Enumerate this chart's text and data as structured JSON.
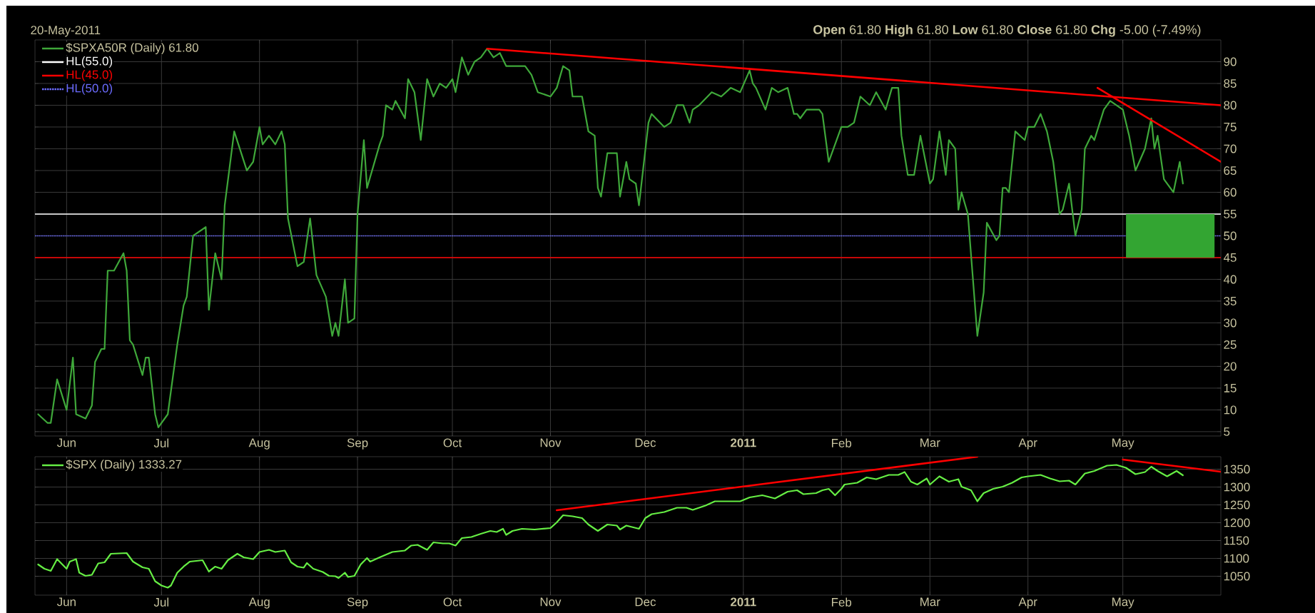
{
  "chart_data": [
    {
      "type": "line",
      "annotations": [
        "20-May-2011",
        "**Open** 61.80 **High** 61.80 **Low** 61.80 **Close** 61.80 **Chg** -5.00 (-7.49%)"
      ],
      "x": [
        "2010-05-23",
        "2010-05-26",
        "2010-05-27",
        "2010-05-29",
        "2010-06-01",
        "2010-06-03",
        "2010-06-04",
        "2010-06-07",
        "2010-06-09",
        "2010-06-10",
        "2010-06-12",
        "2010-06-13",
        "2010-06-14",
        "2010-06-16",
        "2010-06-19",
        "2010-06-20",
        "2010-06-21",
        "2010-06-22",
        "2010-06-25",
        "2010-06-26",
        "2010-06-27",
        "2010-06-29",
        "2010-06-30",
        "2010-07-03",
        "2010-07-06",
        "2010-07-08",
        "2010-07-09",
        "2010-07-11",
        "2010-07-15",
        "2010-07-16",
        "2010-07-18",
        "2010-07-20",
        "2010-07-21",
        "2010-07-24",
        "2010-07-28",
        "2010-07-30",
        "2010-08-01",
        "2010-08-02",
        "2010-08-04",
        "2010-08-06",
        "2010-08-08",
        "2010-08-09",
        "2010-08-10",
        "2010-08-13",
        "2010-08-15",
        "2010-08-17",
        "2010-08-19",
        "2010-08-22",
        "2010-08-24",
        "2010-08-25",
        "2010-08-26",
        "2010-08-28",
        "2010-08-29",
        "2010-08-31",
        "2010-09-01",
        "2010-09-03",
        "2010-09-04",
        "2010-09-08",
        "2010-09-09",
        "2010-09-10",
        "2010-09-12",
        "2010-09-13",
        "2010-09-16",
        "2010-09-17",
        "2010-09-19",
        "2010-09-21",
        "2010-09-23",
        "2010-09-25",
        "2010-09-27",
        "2010-09-29",
        "2010-10-01",
        "2010-10-02",
        "2010-10-04",
        "2010-10-06",
        "2010-10-08",
        "2010-10-10",
        "2010-10-12",
        "2010-10-14",
        "2010-10-16",
        "2010-10-18",
        "2010-10-20",
        "2010-10-24",
        "2010-10-26",
        "2010-10-28",
        "2010-11-01",
        "2010-11-03",
        "2010-11-05",
        "2010-11-07",
        "2010-11-08",
        "2010-11-11",
        "2010-11-13",
        "2010-11-15",
        "2010-11-16",
        "2010-11-17",
        "2010-11-19",
        "2010-11-22",
        "2010-11-23",
        "2010-11-25",
        "2010-11-26",
        "2010-11-28",
        "2010-11-29",
        "2010-12-02",
        "2010-12-03",
        "2010-12-07",
        "2010-12-09",
        "2010-12-11",
        "2010-12-13",
        "2010-12-15",
        "2010-12-16",
        "2010-12-18",
        "2010-12-22",
        "2010-12-25",
        "2010-12-28",
        "2010-12-31",
        "2011-01-03",
        "2011-01-04",
        "2011-01-05",
        "2011-01-08",
        "2011-01-10",
        "2011-01-12",
        "2011-01-15",
        "2011-01-17",
        "2011-01-18",
        "2011-01-19",
        "2011-01-21",
        "2011-01-25",
        "2011-01-26",
        "2011-01-28",
        "2011-02-01",
        "2011-02-03",
        "2011-02-05",
        "2011-02-07",
        "2011-02-10",
        "2011-02-12",
        "2011-02-15",
        "2011-02-17",
        "2011-02-19",
        "2011-02-20",
        "2011-02-22",
        "2011-02-24",
        "2011-02-26",
        "2011-03-01",
        "2011-03-02",
        "2011-03-04",
        "2011-03-06",
        "2011-03-07",
        "2011-03-09",
        "2011-03-10",
        "2011-03-11",
        "2011-03-13",
        "2011-03-16",
        "2011-03-18",
        "2011-03-19",
        "2011-03-22",
        "2011-03-23",
        "2011-03-24",
        "2011-03-25",
        "2011-03-26",
        "2011-03-28",
        "2011-03-31",
        "2011-04-01",
        "2011-04-03",
        "2011-04-05",
        "2011-04-07",
        "2011-04-09",
        "2011-04-11",
        "2011-04-12",
        "2011-04-14",
        "2011-04-16",
        "2011-04-18",
        "2011-04-19",
        "2011-04-21",
        "2011-04-22",
        "2011-04-25",
        "2011-04-27",
        "2011-05-01",
        "2011-05-03",
        "2011-05-05",
        "2011-05-08",
        "2011-05-10",
        "2011-05-11",
        "2011-05-12",
        "2011-05-14",
        "2011-05-17",
        "2011-05-19",
        "2011-05-20"
      ],
      "series": [
        {
          "name": "$SPXA50R (Daily) 61.80",
          "color": "#3fa83a",
          "values": [
            9,
            7,
            7,
            17,
            10,
            22,
            9,
            8,
            11,
            21,
            24,
            24,
            42,
            42,
            46,
            42,
            26,
            25,
            18,
            22,
            22,
            9,
            6,
            9,
            25,
            34,
            36,
            50,
            52,
            33,
            46,
            40,
            57,
            74,
            65,
            67,
            75,
            71,
            73,
            71,
            74,
            71,
            54,
            43,
            44,
            54,
            41,
            36,
            27,
            30,
            27,
            40,
            30,
            31,
            55,
            72,
            61,
            71,
            73,
            80,
            79,
            81,
            77,
            86,
            83,
            72,
            86,
            82,
            85,
            84,
            86,
            83,
            91,
            87,
            90,
            91,
            93,
            91,
            92,
            89,
            89,
            89,
            87,
            83,
            82,
            84,
            89,
            88,
            82,
            82,
            74,
            73,
            61,
            59,
            69,
            69,
            59,
            67,
            63,
            62,
            57,
            76,
            78,
            75,
            76,
            80,
            80,
            76,
            79,
            80,
            83,
            82,
            84,
            83,
            88,
            85,
            84,
            79,
            84,
            83,
            84,
            78,
            78,
            77,
            79,
            79,
            78,
            67,
            75,
            75,
            76,
            82,
            80,
            83,
            79,
            84,
            84,
            73,
            64,
            64,
            73,
            62,
            63,
            74,
            64,
            72,
            70,
            56,
            60,
            55,
            27,
            37,
            53,
            49,
            50,
            61,
            61,
            60,
            74,
            72,
            75,
            75,
            78,
            74,
            67,
            55,
            56,
            62,
            50,
            56,
            70,
            73,
            72,
            79,
            81,
            79,
            73,
            65,
            70,
            77,
            70,
            73,
            63,
            60,
            67,
            62
          ]
        },
        {
          "type": "line",
          "color": "#ff0000",
          "x": [
            "2010-10-12",
            "2011-06-01"
          ],
          "values": [
            93,
            80
          ]
        },
        {
          "type": "line",
          "color": "#ff0000",
          "x": [
            "2011-04-23",
            "2011-06-01"
          ],
          "values": [
            84,
            67
          ]
        },
        {
          "type": "bar",
          "color": "#33a532",
          "x": [
            "2011-05-16"
          ],
          "base": [
            45
          ],
          "values": [
            10
          ]
        }
      ],
      "ref_lines": [
        {
          "axis": "y",
          "value": 55,
          "label": "HL(55.0)",
          "color": "#ffffff"
        },
        {
          "axis": "y",
          "value": 45,
          "label": "HL(45.0)",
          "color": "#ff0000"
        },
        {
          "axis": "y",
          "value": 50,
          "label": "HL(50.0)",
          "color": "#6b6bff",
          "line_style": "dotted"
        }
      ],
      "xlim": [
        "2010-05-22",
        "2011-06-01"
      ],
      "ylim": [
        4,
        95
      ],
      "xticks": [
        {
          "value": "2010-06-01",
          "label": "Jun"
        },
        {
          "value": "2010-07-01",
          "label": "Jul"
        },
        {
          "value": "2010-08-01",
          "label": "Aug"
        },
        {
          "value": "2010-09-01",
          "label": "Sep"
        },
        {
          "value": "2010-10-01",
          "label": "Oct"
        },
        {
          "value": "2010-11-01",
          "label": "Nov"
        },
        {
          "value": "2010-12-01",
          "label": "Dec"
        },
        {
          "value": "2011-01-01",
          "label": "2011"
        },
        {
          "value": "2011-02-01",
          "label": "Feb"
        },
        {
          "value": "2011-03-01",
          "label": "Mar"
        },
        {
          "value": "2011-04-01",
          "label": "Apr"
        },
        {
          "value": "2011-05-01",
          "label": "May"
        }
      ],
      "yticks": [
        5,
        10,
        15,
        20,
        25,
        30,
        35,
        40,
        45,
        50,
        55,
        60,
        65,
        70,
        75,
        80,
        85,
        90
      ],
      "grid": true,
      "legend": "top left"
    },
    {
      "type": "line",
      "x": [
        "2010-05-23",
        "2010-05-25",
        "2010-05-27",
        "2010-05-29",
        "2010-06-01",
        "2010-06-02",
        "2010-06-04",
        "2010-06-05",
        "2010-06-07",
        "2010-06-09",
        "2010-06-11",
        "2010-06-13",
        "2010-06-15",
        "2010-06-20",
        "2010-06-22",
        "2010-06-25",
        "2010-06-27",
        "2010-06-29",
        "2010-07-01",
        "2010-07-03",
        "2010-07-04",
        "2010-07-06",
        "2010-07-08",
        "2010-07-10",
        "2010-07-14",
        "2010-07-16",
        "2010-07-18",
        "2010-07-20",
        "2010-07-22",
        "2010-07-25",
        "2010-07-27",
        "2010-07-30",
        "2010-08-01",
        "2010-08-04",
        "2010-08-06",
        "2010-08-09",
        "2010-08-11",
        "2010-08-13",
        "2010-08-15",
        "2010-08-16",
        "2010-08-18",
        "2010-08-21",
        "2010-08-23",
        "2010-08-25",
        "2010-08-26",
        "2010-08-28",
        "2010-08-29",
        "2010-08-31",
        "2010-09-02",
        "2010-09-04",
        "2010-09-05",
        "2010-09-08",
        "2010-09-12",
        "2010-09-16",
        "2010-09-18",
        "2010-09-20",
        "2010-09-23",
        "2010-09-25",
        "2010-09-28",
        "2010-09-30",
        "2010-10-02",
        "2010-10-04",
        "2010-10-07",
        "2010-10-10",
        "2010-10-13",
        "2010-10-15",
        "2010-10-17",
        "2010-10-18",
        "2010-10-20",
        "2010-10-23",
        "2010-10-27",
        "2010-11-01",
        "2010-11-03",
        "2010-11-05",
        "2010-11-08",
        "2010-11-11",
        "2010-11-13",
        "2010-11-16",
        "2010-11-19",
        "2010-11-22",
        "2010-11-23",
        "2010-11-25",
        "2010-11-29",
        "2010-12-01",
        "2010-12-03",
        "2010-12-07",
        "2010-12-11",
        "2010-12-14",
        "2010-12-16",
        "2010-12-20",
        "2010-12-23",
        "2010-12-31",
        "2011-01-03",
        "2011-01-07",
        "2011-01-11",
        "2011-01-15",
        "2011-01-18",
        "2011-01-20",
        "2011-01-24",
        "2011-01-26",
        "2011-01-28",
        "2011-01-30",
        "2011-02-01",
        "2011-02-02",
        "2011-02-06",
        "2011-02-09",
        "2011-02-12",
        "2011-02-16",
        "2011-02-19",
        "2011-02-21",
        "2011-02-23",
        "2011-02-25",
        "2011-02-28",
        "2011-03-01",
        "2011-03-04",
        "2011-03-07",
        "2011-03-10",
        "2011-03-11",
        "2011-03-14",
        "2011-03-16",
        "2011-03-18",
        "2011-03-21",
        "2011-03-24",
        "2011-03-27",
        "2011-03-30",
        "2011-04-01",
        "2011-04-05",
        "2011-04-08",
        "2011-04-11",
        "2011-04-14",
        "2011-04-16",
        "2011-04-19",
        "2011-04-22",
        "2011-04-26",
        "2011-04-29",
        "2011-05-02",
        "2011-05-05",
        "2011-05-08",
        "2011-05-10",
        "2011-05-12",
        "2011-05-15",
        "2011-05-18",
        "2011-05-20"
      ],
      "series": [
        {
          "name": "$SPX (Daily) 1333.27",
          "color": "#66ee44",
          "values": [
            1083,
            1071,
            1065,
            1098,
            1071,
            1091,
            1098,
            1060,
            1051,
            1054,
            1086,
            1089,
            1113,
            1115,
            1091,
            1075,
            1071,
            1036,
            1024,
            1018,
            1024,
            1060,
            1077,
            1091,
            1095,
            1063,
            1077,
            1071,
            1095,
            1113,
            1103,
            1098,
            1118,
            1124,
            1118,
            1122,
            1089,
            1077,
            1074,
            1087,
            1071,
            1062,
            1051,
            1050,
            1045,
            1060,
            1048,
            1051,
            1083,
            1101,
            1091,
            1103,
            1118,
            1122,
            1136,
            1138,
            1124,
            1145,
            1142,
            1142,
            1136,
            1157,
            1160,
            1169,
            1177,
            1174,
            1183,
            1166,
            1177,
            1183,
            1181,
            1185,
            1201,
            1221,
            1218,
            1213,
            1195,
            1177,
            1195,
            1192,
            1181,
            1192,
            1183,
            1213,
            1224,
            1230,
            1242,
            1242,
            1236,
            1248,
            1260,
            1260,
            1271,
            1277,
            1268,
            1287,
            1291,
            1280,
            1283,
            1291,
            1295,
            1277,
            1295,
            1307,
            1312,
            1327,
            1322,
            1334,
            1334,
            1342,
            1315,
            1307,
            1324,
            1307,
            1330,
            1315,
            1322,
            1301,
            1291,
            1260,
            1283,
            1295,
            1301,
            1312,
            1327,
            1330,
            1334,
            1324,
            1316,
            1318,
            1307,
            1338,
            1345,
            1360,
            1362,
            1354,
            1336,
            1342,
            1357,
            1345,
            1330,
            1345,
            1333
          ]
        },
        {
          "type": "line",
          "color": "#ff0000",
          "x": [
            "2010-11-03",
            "2011-03-16"
          ],
          "values": [
            1235,
            1385
          ]
        },
        {
          "type": "line",
          "color": "#ff0000",
          "x": [
            "2011-05-01",
            "2011-06-01"
          ],
          "values": [
            1377,
            1343
          ]
        }
      ],
      "xlim": [
        "2010-05-22",
        "2011-06-01"
      ],
      "ylim": [
        997,
        1385
      ],
      "xticks": [
        {
          "value": "2010-06-01",
          "label": "Jun"
        },
        {
          "value": "2010-07-01",
          "label": "Jul"
        },
        {
          "value": "2010-08-01",
          "label": "Aug"
        },
        {
          "value": "2010-09-01",
          "label": "Sep"
        },
        {
          "value": "2010-10-01",
          "label": "Oct"
        },
        {
          "value": "2010-11-01",
          "label": "Nov"
        },
        {
          "value": "2010-12-01",
          "label": "Dec"
        },
        {
          "value": "2011-01-01",
          "label": "2011"
        },
        {
          "value": "2011-02-01",
          "label": "Feb"
        },
        {
          "value": "2011-03-01",
          "label": "Mar"
        },
        {
          "value": "2011-04-01",
          "label": "Apr"
        },
        {
          "value": "2011-05-01",
          "label": "May"
        }
      ],
      "yticks": [
        1050,
        1100,
        1150,
        1200,
        1250,
        1300,
        1350
      ],
      "grid": true,
      "legend": "top left"
    }
  ]
}
